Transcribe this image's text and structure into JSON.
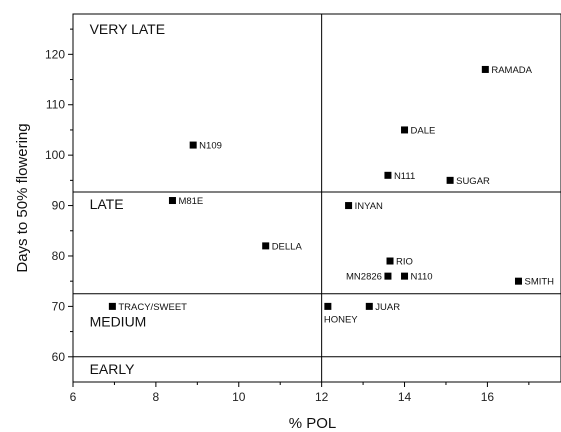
{
  "chart_data": {
    "type": "scatter",
    "title": "",
    "xlabel": "% POL",
    "ylabel": "Days to 50% flowering",
    "xlim": [
      6,
      17.8
    ],
    "ylim": [
      55,
      128
    ],
    "xticks": [
      6,
      8,
      10,
      12,
      14,
      16
    ],
    "yticks": [
      60,
      70,
      80,
      90,
      100,
      110,
      120
    ],
    "grid": false,
    "marker_color": "#000000",
    "reference_lines": {
      "vertical_x": 12,
      "horizontal_y": [
        92.7,
        72.5,
        60
      ]
    },
    "regions": [
      {
        "label": "VERY LATE",
        "x": 6.4,
        "y": 124
      },
      {
        "label": "LATE",
        "x": 6.4,
        "y": 89.3
      },
      {
        "label": "MEDIUM",
        "x": 6.4,
        "y": 66
      },
      {
        "label": "EARLY",
        "x": 6.4,
        "y": 56.6
      }
    ],
    "points": [
      {
        "label": "RAMADA",
        "x": 15.95,
        "y": 117,
        "label_pos": "right"
      },
      {
        "label": "DALE",
        "x": 14.0,
        "y": 105,
        "label_pos": "right"
      },
      {
        "label": "N109",
        "x": 8.9,
        "y": 102,
        "label_pos": "right"
      },
      {
        "label": "N111",
        "x": 13.6,
        "y": 96,
        "label_pos": "right"
      },
      {
        "label": "SUGAR",
        "x": 15.1,
        "y": 95,
        "label_pos": "right"
      },
      {
        "label": "M81E",
        "x": 8.4,
        "y": 91,
        "label_pos": "right"
      },
      {
        "label": "INYAN",
        "x": 12.65,
        "y": 90,
        "label_pos": "right"
      },
      {
        "label": "DELLA",
        "x": 10.65,
        "y": 82,
        "label_pos": "right"
      },
      {
        "label": "RIO",
        "x": 13.65,
        "y": 79,
        "label_pos": "right"
      },
      {
        "label": "MN2826",
        "x": 13.6,
        "y": 76,
        "label_pos": "left"
      },
      {
        "label": "N110",
        "x": 14.0,
        "y": 76,
        "label_pos": "right"
      },
      {
        "label": "SMITH",
        "x": 16.75,
        "y": 75,
        "label_pos": "right"
      },
      {
        "label": "TRACY/SWEET",
        "x": 6.95,
        "y": 70,
        "label_pos": "right"
      },
      {
        "label": "HONEY",
        "x": 12.15,
        "y": 70,
        "label_pos": "below"
      },
      {
        "label": "JUAR",
        "x": 13.15,
        "y": 70,
        "label_pos": "right"
      }
    ]
  }
}
